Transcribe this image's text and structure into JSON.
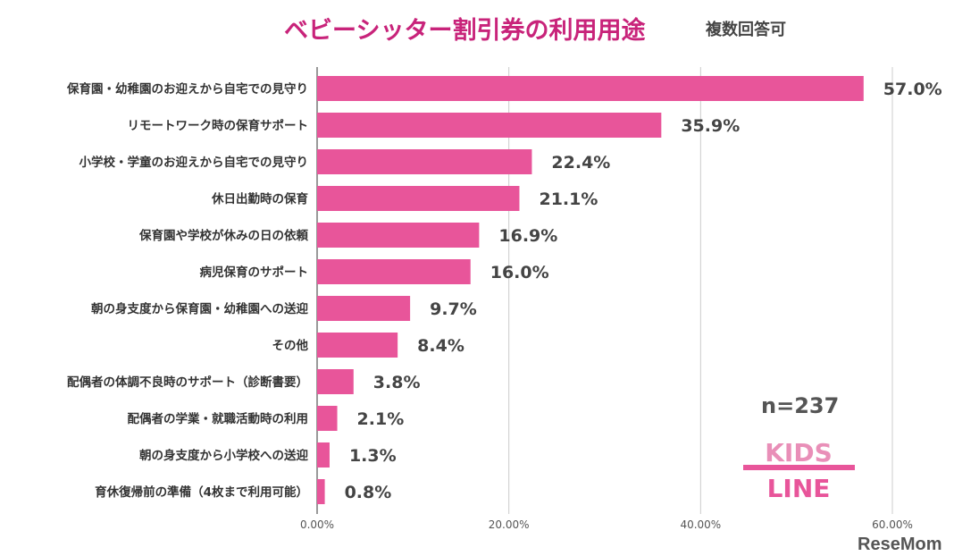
{
  "chart_data": {
    "type": "bar",
    "orientation": "horizontal",
    "title": "ベビーシッター割引券の利用用途",
    "subtitle": "複数回答可",
    "categories": [
      "保育園・幼稚園のお迎えから自宅での見守り",
      "リモートワーク時の保育サポート",
      "小学校・学童のお迎えから自宅での見守り",
      "休日出勤時の保育",
      "保育園や学校が休みの日の依頼",
      "病児保育のサポート",
      "朝の身支度から保育園・幼稚園への送迎",
      "その他",
      "配偶者の体調不良時のサポート（診断書要）",
      "配偶者の学業・就職活動時の利用",
      "朝の身支度から小学校への送迎",
      "育休復帰前の準備（4枚まで利用可能）"
    ],
    "values": [
      57.0,
      35.9,
      22.4,
      21.1,
      16.9,
      16.0,
      9.7,
      8.4,
      3.8,
      2.1,
      1.3,
      0.8
    ],
    "data_labels": [
      "57.0%",
      "35.9%",
      "22.4%",
      "21.1%",
      "16.9%",
      "16.0%",
      "9.7%",
      "8.4%",
      "3.8%",
      "2.1%",
      "1.3%",
      "0.8%"
    ],
    "xlim": [
      0,
      60
    ],
    "x_ticks": [
      0,
      20,
      40,
      60
    ],
    "x_tick_labels": [
      "0.00%",
      "20.00%",
      "40.00%",
      "60.00%"
    ],
    "grid": "vertical",
    "bar_color": "#e8559a",
    "annotation": "n=237"
  },
  "logo": "KIDS LINE",
  "watermark": "ReseMom"
}
